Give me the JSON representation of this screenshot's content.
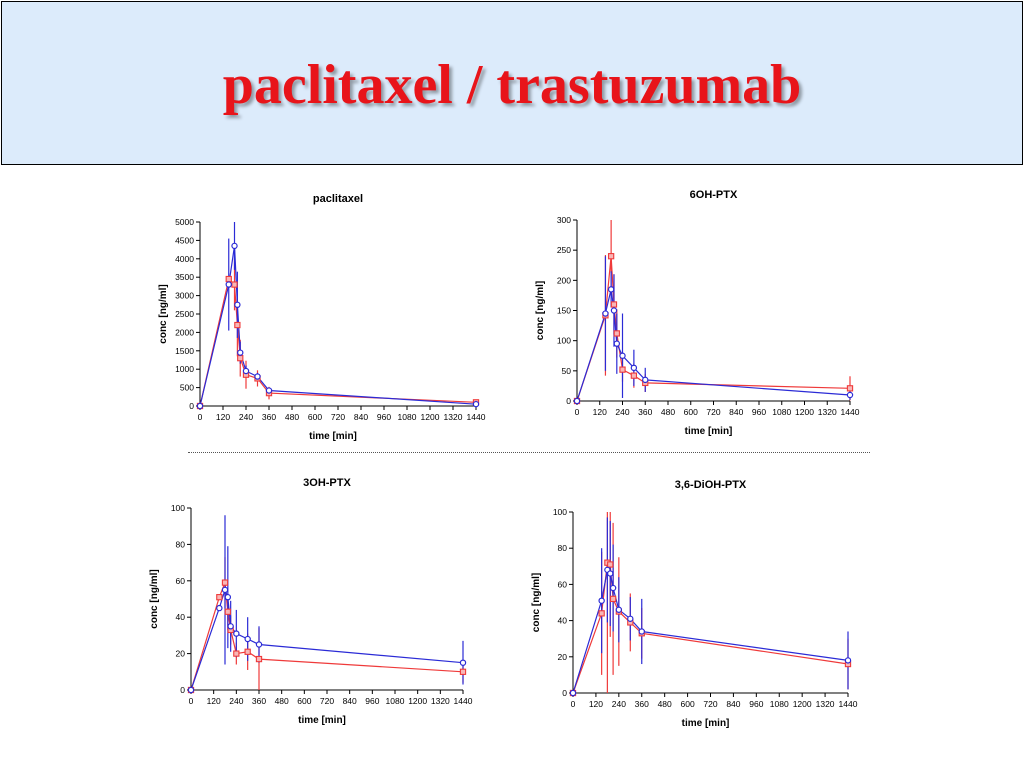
{
  "slide": {
    "title": "paclitaxel / trastuzumab"
  },
  "colors": {
    "blue_series": "#2b2bd6",
    "red_series": "#ef3a3a",
    "title_red": "#e8141a",
    "banner_bg": "#dcebfb"
  },
  "chart_data": [
    {
      "type": "line",
      "title": "paclitaxel",
      "xlabel": "time [min]",
      "ylabel": "conc [ng/ml]",
      "xlim": [
        0,
        1440
      ],
      "ylim": [
        0,
        5000
      ],
      "xticks": [
        0,
        120,
        240,
        360,
        480,
        600,
        720,
        840,
        960,
        1080,
        1200,
        1320,
        1440
      ],
      "yticks": [
        0,
        500,
        1000,
        1500,
        2000,
        2500,
        3000,
        3500,
        4000,
        4500,
        5000
      ],
      "series": [
        {
          "marker": "circle",
          "color": "#2b2bd6",
          "x": [
            0,
            150,
            180,
            195,
            210,
            240,
            300,
            360,
            1440
          ],
          "y": [
            0,
            3300,
            4350,
            2750,
            1450,
            950,
            800,
            420,
            50
          ],
          "err": [
            0,
            1250,
            650,
            900,
            300,
            150,
            100,
            80,
            30
          ]
        },
        {
          "marker": "square",
          "color": "#ef3a3a",
          "x": [
            0,
            150,
            180,
            195,
            210,
            240,
            300,
            360,
            1440
          ],
          "y": [
            0,
            3450,
            3300,
            2200,
            1300,
            850,
            750,
            350,
            100
          ],
          "err": [
            0,
            0,
            700,
            850,
            500,
            380,
            220,
            170,
            60
          ]
        }
      ]
    },
    {
      "type": "line",
      "title": "6OH-PTX",
      "xlabel": "time [min]",
      "ylabel": "conc [ng/ml]",
      "xlim": [
        0,
        1440
      ],
      "ylim": [
        0,
        300
      ],
      "xticks": [
        0,
        120,
        240,
        360,
        480,
        600,
        720,
        840,
        960,
        1080,
        1200,
        1320,
        1440
      ],
      "yticks": [
        0,
        50,
        100,
        150,
        200,
        250,
        300
      ],
      "series": [
        {
          "marker": "circle",
          "color": "#2b2bd6",
          "x": [
            0,
            150,
            180,
            195,
            210,
            240,
            300,
            360,
            1440
          ],
          "y": [
            0,
            145,
            185,
            150,
            95,
            75,
            55,
            35,
            10
          ],
          "err": [
            0,
            95,
            30,
            60,
            50,
            70,
            30,
            20,
            8
          ]
        },
        {
          "marker": "square",
          "color": "#ef3a3a",
          "x": [
            0,
            150,
            180,
            195,
            210,
            240,
            300,
            360,
            1440
          ],
          "y": [
            0,
            142,
            240,
            160,
            112,
            52,
            42,
            30,
            21
          ],
          "err": [
            0,
            100,
            60,
            50,
            40,
            20,
            20,
            15,
            20
          ]
        }
      ]
    },
    {
      "type": "line",
      "title": "3OH-PTX",
      "xlabel": "time [min]",
      "ylabel": "conc [ng/ml]",
      "xlim": [
        0,
        1440
      ],
      "ylim": [
        0,
        100
      ],
      "xticks": [
        0,
        120,
        240,
        360,
        480,
        600,
        720,
        840,
        960,
        1080,
        1200,
        1320,
        1440
      ],
      "yticks": [
        0,
        20,
        40,
        60,
        80,
        100
      ],
      "series": [
        {
          "marker": "circle",
          "color": "#2b2bd6",
          "x": [
            0,
            150,
            180,
            195,
            210,
            240,
            300,
            360,
            1440
          ],
          "y": [
            0,
            45,
            55,
            51,
            35,
            31,
            28,
            25,
            15
          ],
          "err": [
            0,
            0,
            41,
            28,
            14,
            13,
            12,
            10,
            12
          ]
        },
        {
          "marker": "square",
          "color": "#ef3a3a",
          "x": [
            0,
            150,
            180,
            195,
            210,
            240,
            300,
            360,
            1440
          ],
          "y": [
            0,
            51,
            59,
            43,
            33,
            20,
            21,
            17,
            10
          ],
          "err": [
            0,
            0,
            14,
            10,
            8,
            6,
            10,
            17,
            6
          ]
        }
      ]
    },
    {
      "type": "line",
      "title": "3,6-DiOH-PTX",
      "xlabel": "time [min]",
      "ylabel": "conc [ng/ml]",
      "xlim": [
        0,
        1440
      ],
      "ylim": [
        0,
        100
      ],
      "xticks": [
        0,
        120,
        240,
        360,
        480,
        600,
        720,
        840,
        960,
        1080,
        1200,
        1320,
        1440
      ],
      "yticks": [
        0,
        20,
        40,
        60,
        80,
        100
      ],
      "series": [
        {
          "marker": "circle",
          "color": "#2b2bd6",
          "x": [
            0,
            150,
            180,
            195,
            210,
            240,
            300,
            360,
            1440
          ],
          "y": [
            0,
            51,
            68,
            66,
            58,
            46,
            41,
            34,
            18
          ],
          "err": [
            0,
            29,
            29,
            29,
            24,
            18,
            12,
            18,
            16
          ]
        },
        {
          "marker": "square",
          "color": "#ef3a3a",
          "x": [
            0,
            150,
            180,
            195,
            210,
            240,
            300,
            360,
            1440
          ],
          "y": [
            0,
            44,
            72,
            71,
            52,
            45,
            39,
            33,
            16
          ],
          "err": [
            0,
            34,
            72,
            40,
            42,
            30,
            16,
            14,
            14
          ]
        }
      ]
    }
  ]
}
